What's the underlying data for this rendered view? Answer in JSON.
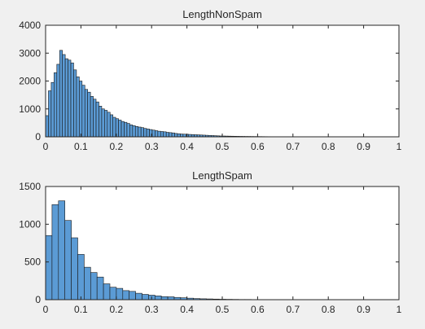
{
  "colors": {
    "background": "#f0f0f0",
    "axes_bg": "#ffffff",
    "bar_fill": "#5b9bd5",
    "bar_edge": "#1a1a1a",
    "text": "#262626"
  },
  "chart_data": [
    {
      "type": "bar",
      "title": "LengthNonSpam",
      "xlabel": "",
      "ylabel": "",
      "xlim": [
        0,
        1
      ],
      "ylim": [
        0,
        4000
      ],
      "xticks": [
        "0",
        "0.1",
        "0.2",
        "0.3",
        "0.4",
        "0.5",
        "0.6",
        "0.7",
        "0.8",
        "0.9",
        "1"
      ],
      "yticks": [
        "0",
        "1000",
        "2000",
        "3000",
        "4000"
      ],
      "grid": false,
      "bin_width": 0.00794,
      "bin_start": 0,
      "values": [
        760,
        1650,
        1950,
        2300,
        2600,
        3100,
        2950,
        2800,
        2750,
        2650,
        2400,
        2150,
        2000,
        1850,
        1700,
        1600,
        1450,
        1350,
        1250,
        1100,
        1000,
        950,
        880,
        790,
        700,
        650,
        600,
        550,
        520,
        480,
        430,
        400,
        370,
        350,
        330,
        300,
        280,
        260,
        240,
        220,
        200,
        190,
        180,
        160,
        150,
        140,
        120,
        110,
        100,
        95,
        90,
        85,
        80,
        75,
        70,
        65,
        60,
        55,
        50,
        45,
        40,
        35,
        30,
        28,
        26,
        24,
        22,
        20,
        18,
        16,
        15,
        14,
        13,
        12,
        11,
        10,
        9,
        8,
        7,
        6
      ]
    },
    {
      "type": "bar",
      "title": "LengthSpam",
      "xlabel": "",
      "ylabel": "",
      "xlim": [
        0,
        1
      ],
      "ylim": [
        0,
        1500
      ],
      "xticks": [
        "0",
        "0.1",
        "0.2",
        "0.3",
        "0.4",
        "0.5",
        "0.6",
        "0.7",
        "0.8",
        "0.9",
        "1"
      ],
      "yticks": [
        "0",
        "500",
        "1000",
        "1500"
      ],
      "grid": false,
      "bin_width": 0.0182,
      "bin_start": 0,
      "values": [
        850,
        1260,
        1310,
        1050,
        820,
        600,
        430,
        360,
        300,
        210,
        165,
        150,
        120,
        110,
        85,
        70,
        60,
        50,
        40,
        38,
        30,
        25,
        20,
        15,
        12,
        10,
        8,
        6,
        5,
        4,
        3,
        3,
        2,
        2,
        1,
        1,
        1,
        1,
        1,
        1
      ]
    }
  ]
}
